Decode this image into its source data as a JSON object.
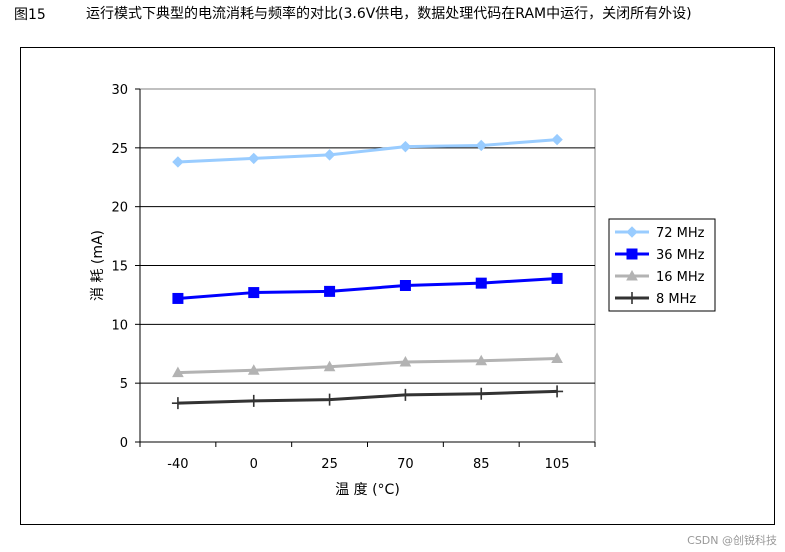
{
  "figure": {
    "label": "图15",
    "caption": "运行模式下典型的电流消耗与频率的对比(3.6V供电，数据处理代码在RAM中运行，关闭所有外设)"
  },
  "watermark": "CSDN @创锐科技",
  "chart_data": {
    "type": "line",
    "categories": [
      "-40",
      "0",
      "25",
      "70",
      "85",
      "105"
    ],
    "xlabel": "温 度 (°C)",
    "ylabel": "消 耗 (mA)",
    "ylim": [
      0,
      30
    ],
    "yticks": [
      "0",
      "5",
      "10",
      "15",
      "20",
      "25",
      "30"
    ],
    "grid": "horizontal",
    "legend_position": "right",
    "series": [
      {
        "name": "72 MHz",
        "values": [
          23.8,
          24.1,
          24.4,
          25.1,
          25.2,
          25.7
        ],
        "color": "#99ccff",
        "marker": "diamond"
      },
      {
        "name": "36 MHz",
        "values": [
          12.2,
          12.7,
          12.8,
          13.3,
          13.5,
          13.9
        ],
        "color": "#0000ff",
        "marker": "square"
      },
      {
        "name": "16 MHz",
        "values": [
          5.9,
          6.1,
          6.4,
          6.8,
          6.9,
          7.1
        ],
        "color": "#b3b3b3",
        "marker": "triangle"
      },
      {
        "name": "8 MHz",
        "values": [
          3.3,
          3.5,
          3.6,
          4.0,
          4.1,
          4.3
        ],
        "color": "#333333",
        "marker": "plus"
      }
    ]
  }
}
